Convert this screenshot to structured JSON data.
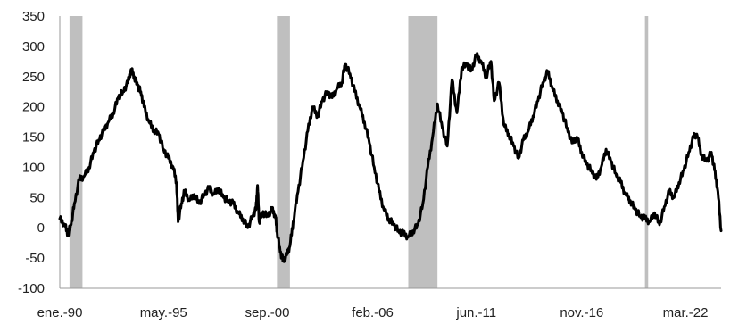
{
  "chart_data": {
    "type": "line",
    "title": "",
    "xlabel": "",
    "ylabel": "",
    "ylim": [
      -100,
      350
    ],
    "yticks": [
      -100,
      -50,
      0,
      50,
      100,
      150,
      200,
      250,
      300,
      350
    ],
    "xticks": [
      {
        "label": "ene.-90",
        "date": "1990-01"
      },
      {
        "label": "may.-95",
        "date": "1995-05"
      },
      {
        "label": "sep.-00",
        "date": "2000-09"
      },
      {
        "label": "feb.-06",
        "date": "2006-02"
      },
      {
        "label": "jun.-11",
        "date": "2011-06"
      },
      {
        "label": "nov.-16",
        "date": "2016-11"
      },
      {
        "label": "mar.-22",
        "date": "2022-03"
      }
    ],
    "grid": false,
    "legend": "none",
    "shaded_periods": [
      {
        "start": "1990-07",
        "end": "1991-03"
      },
      {
        "start": "2001-03",
        "end": "2001-11"
      },
      {
        "start": "2007-12",
        "end": "2009-06"
      },
      {
        "start": "2020-02",
        "end": "2020-04"
      }
    ],
    "series": [
      {
        "color": "#000000",
        "points": [
          [
            "1990-01",
            15
          ],
          [
            "1990-04",
            5
          ],
          [
            "1990-06",
            -10
          ],
          [
            "1990-08",
            5
          ],
          [
            "1990-10",
            40
          ],
          [
            "1991-01",
            80
          ],
          [
            "1991-04",
            85
          ],
          [
            "1991-07",
            100
          ],
          [
            "1991-10",
            125
          ],
          [
            "1992-01",
            145
          ],
          [
            "1992-04",
            160
          ],
          [
            "1992-07",
            175
          ],
          [
            "1992-10",
            190
          ],
          [
            "1993-01",
            215
          ],
          [
            "1993-04",
            225
          ],
          [
            "1993-07",
            240
          ],
          [
            "1993-09",
            262
          ],
          [
            "1993-11",
            250
          ],
          [
            "1994-01",
            235
          ],
          [
            "1994-03",
            225
          ],
          [
            "1994-05",
            200
          ],
          [
            "1994-08",
            175
          ],
          [
            "1994-11",
            162
          ],
          [
            "1995-02",
            155
          ],
          [
            "1995-05",
            130
          ],
          [
            "1995-08",
            115
          ],
          [
            "1995-11",
            100
          ],
          [
            "1996-01",
            75
          ],
          [
            "1996-02",
            10
          ],
          [
            "1996-04",
            40
          ],
          [
            "1996-06",
            60
          ],
          [
            "1996-09",
            45
          ],
          [
            "1996-12",
            55
          ],
          [
            "1997-03",
            40
          ],
          [
            "1997-06",
            55
          ],
          [
            "1997-09",
            65
          ],
          [
            "1997-12",
            55
          ],
          [
            "1998-03",
            65
          ],
          [
            "1998-06",
            50
          ],
          [
            "1998-09",
            45
          ],
          [
            "1998-12",
            40
          ],
          [
            "1999-03",
            25
          ],
          [
            "1999-06",
            15
          ],
          [
            "1999-09",
            0
          ],
          [
            "1999-12",
            20
          ],
          [
            "2000-02",
            30
          ],
          [
            "2000-03",
            70
          ],
          [
            "2000-04",
            10
          ],
          [
            "2000-06",
            25
          ],
          [
            "2000-09",
            20
          ],
          [
            "2000-12",
            30
          ],
          [
            "2001-02",
            20
          ],
          [
            "2001-03",
            -5
          ],
          [
            "2001-05",
            -40
          ],
          [
            "2001-07",
            -55
          ],
          [
            "2001-09",
            -45
          ],
          [
            "2001-11",
            -30
          ],
          [
            "2002-01",
            10
          ],
          [
            "2002-04",
            60
          ],
          [
            "2002-07",
            110
          ],
          [
            "2002-10",
            160
          ],
          [
            "2003-01",
            200
          ],
          [
            "2003-04",
            185
          ],
          [
            "2003-07",
            210
          ],
          [
            "2003-10",
            225
          ],
          [
            "2004-01",
            215
          ],
          [
            "2004-04",
            230
          ],
          [
            "2004-07",
            240
          ],
          [
            "2004-09",
            270
          ],
          [
            "2004-12",
            255
          ],
          [
            "2005-03",
            225
          ],
          [
            "2005-06",
            200
          ],
          [
            "2005-09",
            175
          ],
          [
            "2005-12",
            140
          ],
          [
            "2006-03",
            100
          ],
          [
            "2006-06",
            60
          ],
          [
            "2006-09",
            30
          ],
          [
            "2006-12",
            15
          ],
          [
            "2007-03",
            5
          ],
          [
            "2007-06",
            -5
          ],
          [
            "2007-09",
            -10
          ],
          [
            "2007-12",
            -15
          ],
          [
            "2008-03",
            -5
          ],
          [
            "2008-06",
            5
          ],
          [
            "2008-09",
            40
          ],
          [
            "2008-12",
            100
          ],
          [
            "2009-03",
            150
          ],
          [
            "2009-06",
            205
          ],
          [
            "2009-09",
            165
          ],
          [
            "2009-12",
            135
          ],
          [
            "2010-03",
            245
          ],
          [
            "2010-06",
            190
          ],
          [
            "2010-09",
            265
          ],
          [
            "2010-12",
            270
          ],
          [
            "2011-03",
            260
          ],
          [
            "2011-06",
            285
          ],
          [
            "2011-09",
            275
          ],
          [
            "2011-12",
            250
          ],
          [
            "2012-03",
            275
          ],
          [
            "2012-05",
            210
          ],
          [
            "2012-08",
            240
          ],
          [
            "2012-11",
            170
          ],
          [
            "2013-02",
            155
          ],
          [
            "2013-05",
            135
          ],
          [
            "2013-08",
            115
          ],
          [
            "2013-11",
            145
          ],
          [
            "2014-02",
            160
          ],
          [
            "2014-05",
            185
          ],
          [
            "2014-08",
            210
          ],
          [
            "2014-11",
            240
          ],
          [
            "2015-02",
            258
          ],
          [
            "2015-05",
            230
          ],
          [
            "2015-08",
            210
          ],
          [
            "2015-11",
            190
          ],
          [
            "2016-02",
            165
          ],
          [
            "2016-05",
            140
          ],
          [
            "2016-08",
            150
          ],
          [
            "2016-11",
            125
          ],
          [
            "2017-02",
            105
          ],
          [
            "2017-05",
            95
          ],
          [
            "2017-08",
            80
          ],
          [
            "2017-11",
            100
          ],
          [
            "2018-02",
            130
          ],
          [
            "2018-05",
            110
          ],
          [
            "2018-08",
            90
          ],
          [
            "2018-11",
            75
          ],
          [
            "2019-02",
            55
          ],
          [
            "2019-05",
            45
          ],
          [
            "2019-08",
            30
          ],
          [
            "2019-11",
            20
          ],
          [
            "2020-02",
            15
          ],
          [
            "2020-05",
            10
          ],
          [
            "2020-08",
            25
          ],
          [
            "2020-11",
            5
          ],
          [
            "2021-02",
            35
          ],
          [
            "2021-05",
            60
          ],
          [
            "2021-08",
            50
          ],
          [
            "2021-11",
            75
          ],
          [
            "2022-02",
            95
          ],
          [
            "2022-05",
            125
          ],
          [
            "2022-08",
            150
          ],
          [
            "2022-10",
            155
          ],
          [
            "2023-01",
            120
          ],
          [
            "2023-04",
            110
          ],
          [
            "2023-07",
            125
          ],
          [
            "2023-09",
            95
          ],
          [
            "2023-11",
            60
          ],
          [
            "2024-01",
            -5
          ]
        ]
      }
    ]
  }
}
